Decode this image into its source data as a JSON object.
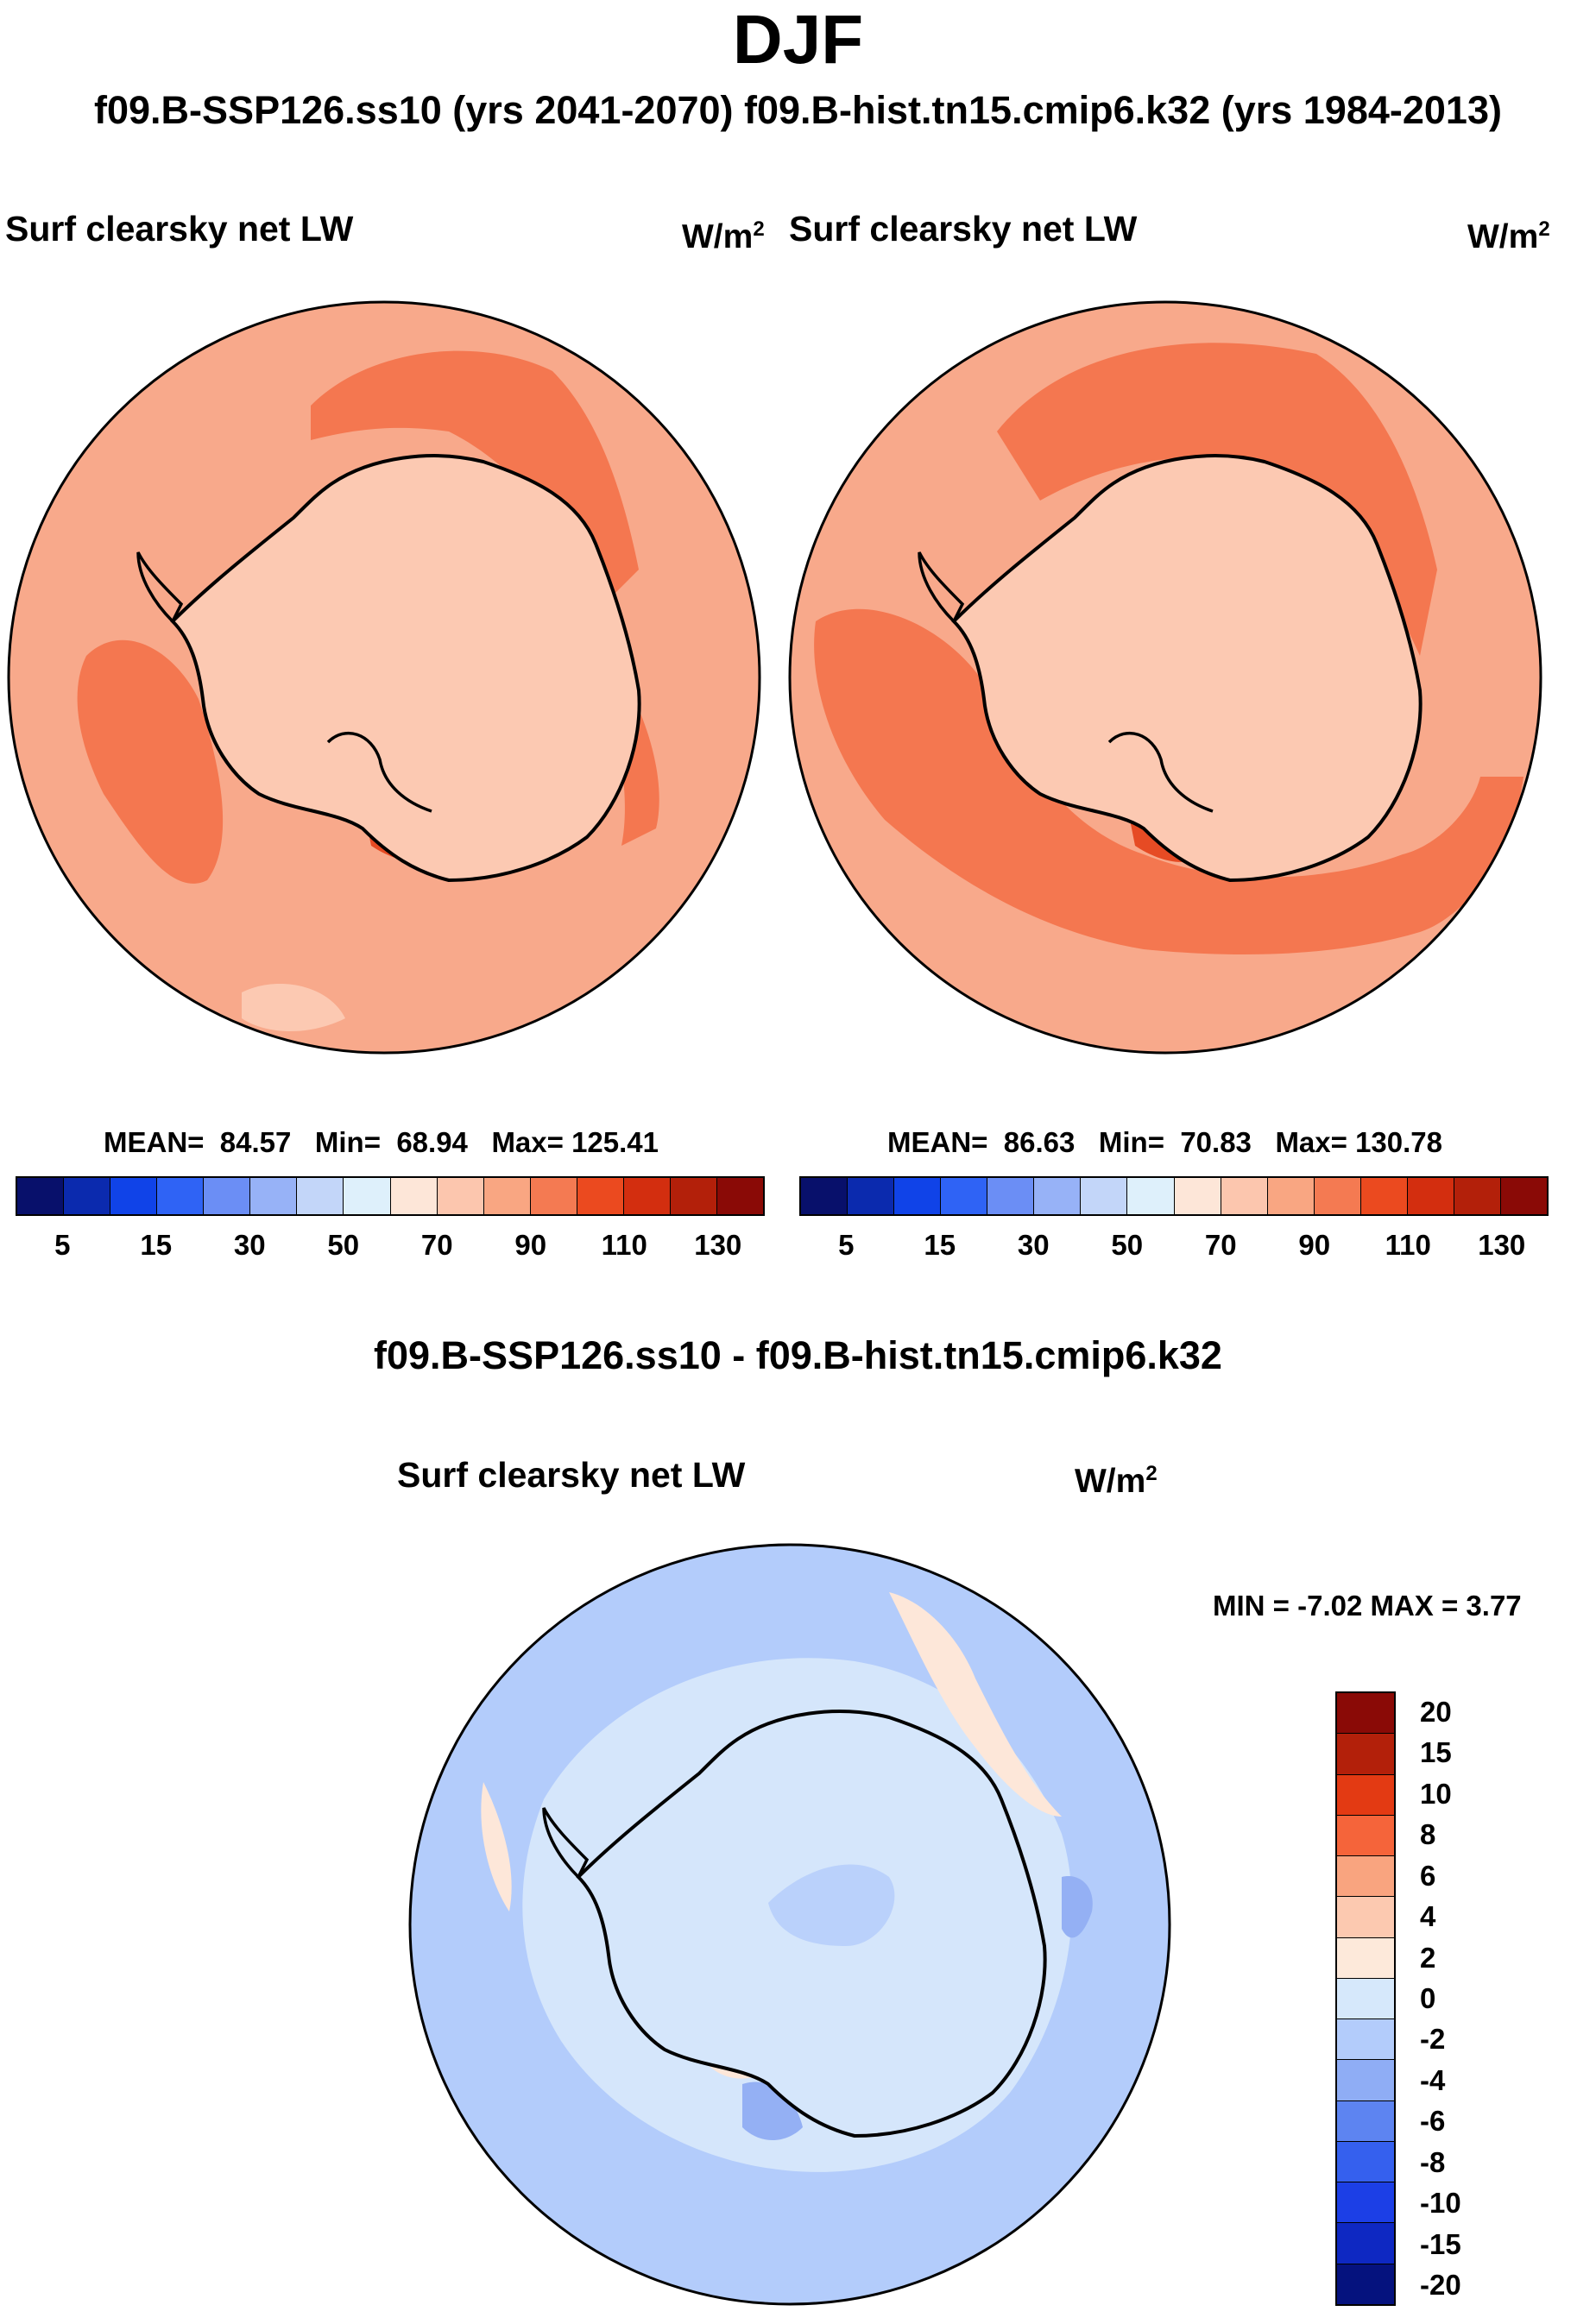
{
  "page": {
    "title": "DJF",
    "subtitle": "f09.B-SSP126.ss10 (yrs 2041-2070)  f09.B-hist.tn15.cmip6.k32 (yrs 1984-2013)"
  },
  "colors": {
    "map_background": "#f8a98b",
    "continent_fill": "#fcc9b2",
    "band_dark": "#f47750",
    "band_darkest": "#e64b24",
    "diff_background": "#b3ccfb",
    "diff_light": "#d5e6fb",
    "diff_positive": "#fde7d9",
    "diff_negative": "#94b0f4",
    "coastline": "#000000"
  },
  "panels": [
    {
      "label": "Surf clearsky net LW",
      "units": "W/m",
      "units_sup": "2",
      "stats": {
        "mean_label": "MEAN=",
        "mean": "84.57",
        "min_label": "Min=",
        "min": "68.94",
        "max_label": "Max=",
        "max": "125.41"
      }
    },
    {
      "label": "Surf clearsky net LW",
      "units": "W/m",
      "units_sup": "2",
      "stats": {
        "mean_label": "MEAN=",
        "mean": "86.63",
        "min_label": "Min=",
        "min": "70.83",
        "max_label": "Max=",
        "max": "130.78"
      }
    }
  ],
  "main_colorbar": {
    "colors": [
      "#08106b",
      "#0b2aae",
      "#1043e8",
      "#2f63f5",
      "#6b8ef5",
      "#97b2f7",
      "#c3d6f9",
      "#def0fb",
      "#fde6d8",
      "#fcc6ae",
      "#f9a682",
      "#f47a52",
      "#eb4a1f",
      "#d32e0f",
      "#b3200a",
      "#8a0a06"
    ],
    "tick_labels": [
      "5",
      "15",
      "30",
      "50",
      "70",
      "90",
      "110",
      "130"
    ]
  },
  "difference": {
    "title": "f09.B-SSP126.ss10 - f09.B-hist.tn15.cmip6.k32",
    "label": "Surf clearsky net LW",
    "units": "W/m",
    "units_sup": "2",
    "stats": "MIN =  -7.02 MAX =   3.77",
    "colorbar": {
      "colors": [
        "#8a0a06",
        "#b3200a",
        "#e33a13",
        "#f5643a",
        "#f9a47f",
        "#fcc9b0",
        "#fde9da",
        "#d6e8fb",
        "#b3ccfb",
        "#8fadf5",
        "#5d84f1",
        "#3560ee",
        "#1c3fe6",
        "#0e28c2",
        "#05127e"
      ],
      "tick_labels": [
        "20",
        "15",
        "10",
        "8",
        "6",
        "4",
        "2",
        "0",
        "-2",
        "-4",
        "-6",
        "-8",
        "-10",
        "-15",
        "-20"
      ]
    }
  }
}
